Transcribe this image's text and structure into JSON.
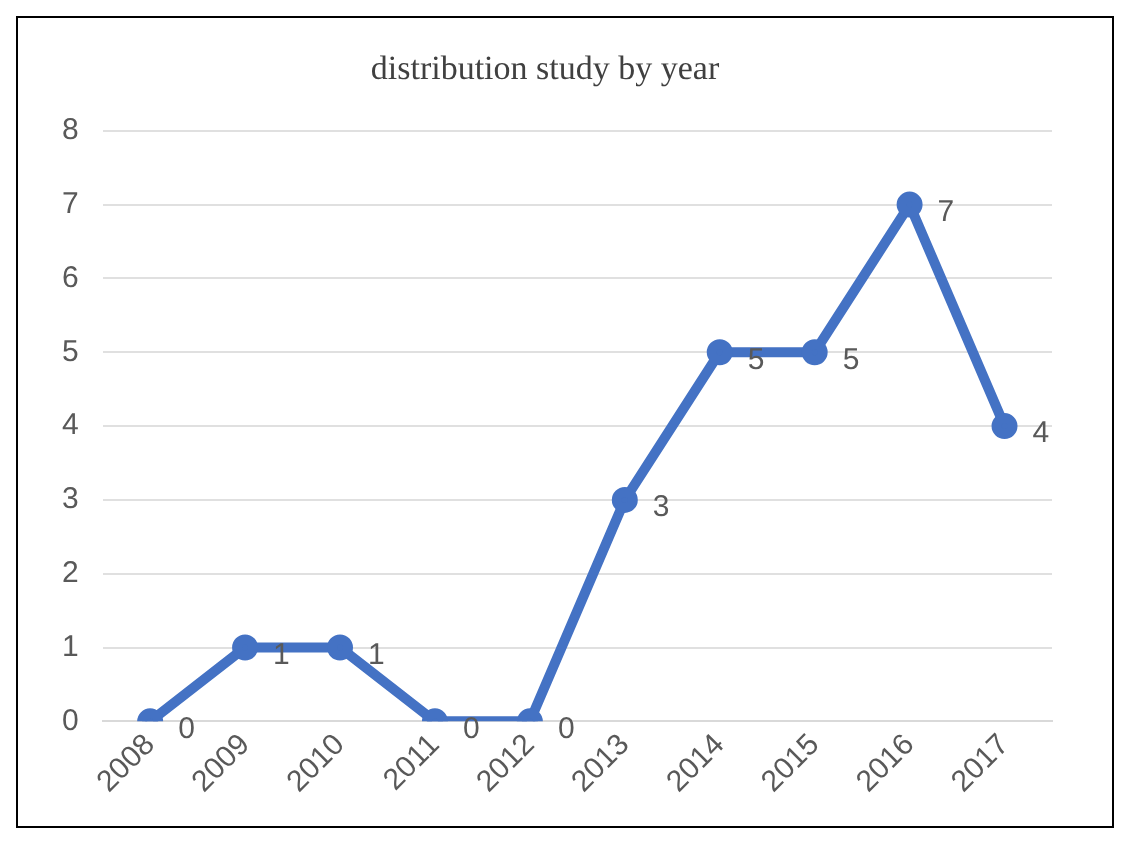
{
  "chart_data": {
    "type": "line",
    "title": "distribution study by year",
    "categories": [
      "2008",
      "2009",
      "2010",
      "2011",
      "2012",
      "2013",
      "2014",
      "2015",
      "2016",
      "2017"
    ],
    "series": [
      {
        "color": "#4472c4",
        "values": [
          0,
          1,
          1,
          0,
          0,
          3,
          5,
          5,
          7,
          4
        ]
      }
    ],
    "ylim": [
      0,
      8
    ],
    "yticks": [
      0,
      1,
      2,
      3,
      4,
      5,
      6,
      7,
      8
    ],
    "grid": "y",
    "legend": false,
    "marker": "circle",
    "line_style": "solid",
    "data_labels": true
  }
}
